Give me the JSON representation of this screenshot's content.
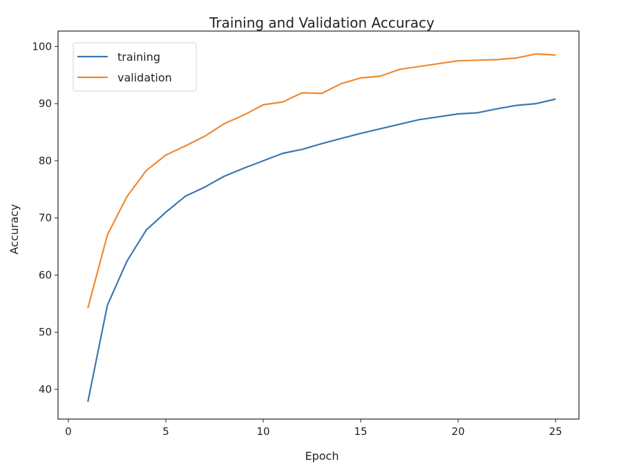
{
  "chart_data": {
    "type": "line",
    "title": "Training and Validation Accuracy",
    "xlabel": "Epoch",
    "ylabel": "Accuracy",
    "xlim": [
      -0.53,
      26.2
    ],
    "ylim": [
      34.8,
      102.7
    ],
    "xticks": [
      0,
      5,
      10,
      15,
      20,
      25
    ],
    "yticks": [
      40,
      50,
      60,
      70,
      80,
      90,
      100
    ],
    "grid": false,
    "legend_position": "top-left",
    "x": [
      1,
      2,
      3,
      4,
      5,
      6,
      7,
      8,
      9,
      10,
      11,
      12,
      13,
      14,
      15,
      16,
      17,
      18,
      19,
      20,
      21,
      22,
      23,
      24,
      25
    ],
    "series": [
      {
        "name": "training",
        "color": "#3a76b0",
        "values": [
          37.8,
          54.7,
          62.4,
          67.9,
          71.0,
          73.8,
          75.4,
          77.3,
          78.7,
          80.0,
          81.3,
          82.0,
          83.0,
          83.9,
          84.8,
          85.6,
          86.4,
          87.2,
          87.7,
          88.2,
          88.4,
          89.1,
          89.7,
          90.0,
          90.8
        ]
      },
      {
        "name": "validation",
        "color": "#f0882f",
        "values": [
          54.2,
          67.0,
          73.7,
          78.3,
          81.0,
          82.6,
          84.3,
          86.5,
          88.0,
          89.8,
          90.3,
          91.9,
          91.8,
          93.5,
          94.5,
          94.8,
          96.0,
          96.5,
          97.0,
          97.5,
          97.6,
          97.7,
          98.0,
          98.7,
          98.5
        ]
      }
    ]
  }
}
